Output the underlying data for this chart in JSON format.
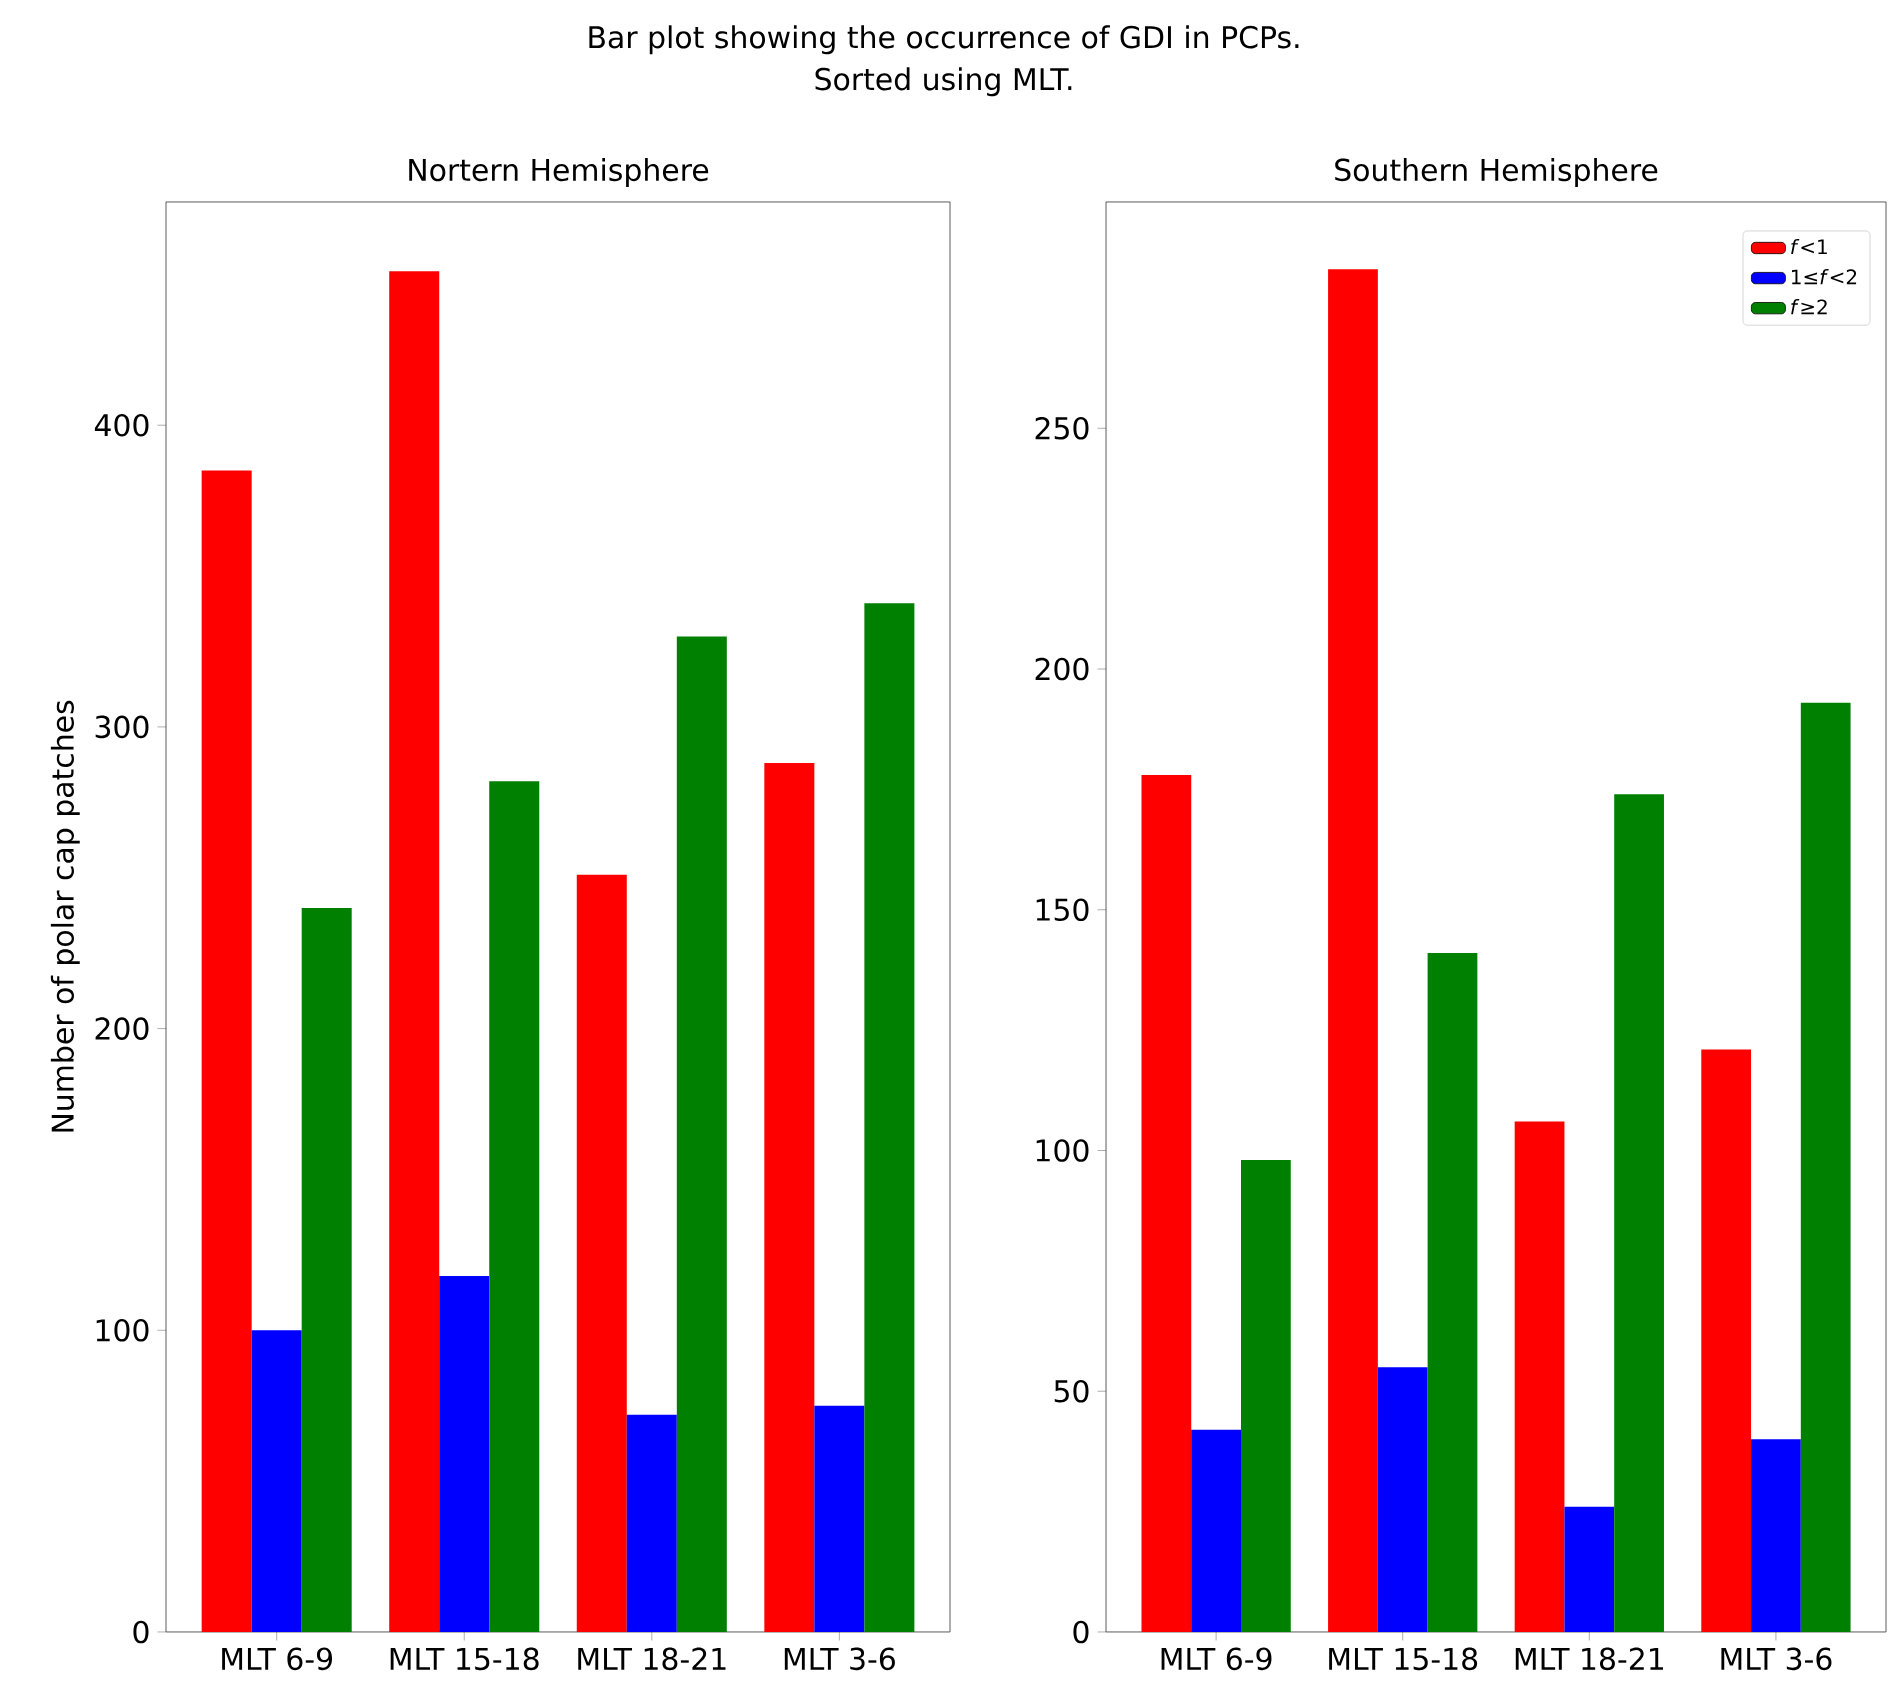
{
  "chart_data": [
    {
      "type": "bar",
      "title": "Nortern Hemisphere",
      "ylabel": "Number of polar cap patches",
      "annotations": [
        "Bar plot showing the occurrence of GDI in PCPs.",
        "Sorted using MLT."
      ],
      "categories": [
        "MLT 6-9",
        "MLT 15-18",
        "MLT 18-21",
        "MLT 3-6"
      ],
      "series": [
        {
          "color": "#ff0000",
          "values": [
            385,
            451,
            251,
            288
          ]
        },
        {
          "color": "#0000ff",
          "values": [
            100,
            118,
            72,
            75
          ]
        },
        {
          "color": "#008000",
          "values": [
            240,
            282,
            330,
            341
          ]
        }
      ],
      "ylim": [
        0,
        474
      ],
      "yticks": [
        0,
        100,
        200,
        300,
        400
      ],
      "grid": false,
      "legend": false
    },
    {
      "type": "bar",
      "title": "Southern Hemisphere",
      "categories": [
        "MLT 6-9",
        "MLT 15-18",
        "MLT 18-21",
        "MLT 3-6"
      ],
      "series": [
        {
          "name": "*f*<1",
          "color": "#ff0000",
          "values": [
            178,
            283,
            106,
            121
          ]
        },
        {
          "name": "1≤*f*<2",
          "color": "#0000ff",
          "values": [
            42,
            55,
            26,
            40
          ]
        },
        {
          "name": "*f*≥2",
          "color": "#008000",
          "values": [
            98,
            141,
            174,
            193
          ]
        }
      ],
      "ylim": [
        0,
        297
      ],
      "yticks": [
        0,
        50,
        100,
        150,
        200,
        250
      ],
      "grid": false,
      "legend": "top right"
    }
  ]
}
